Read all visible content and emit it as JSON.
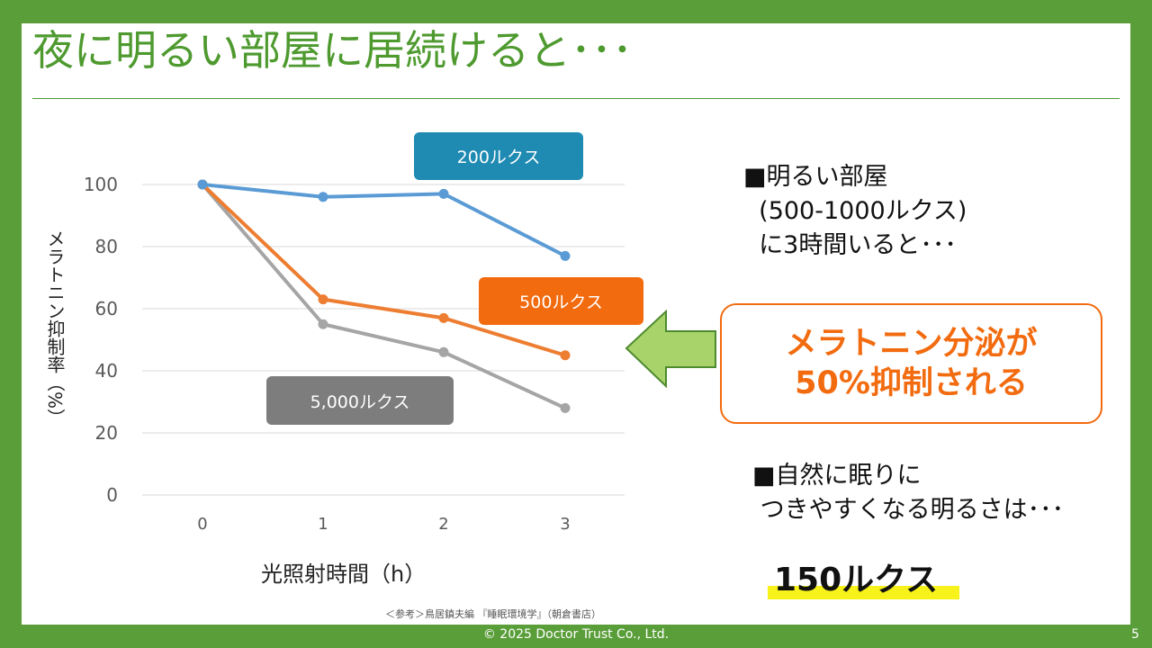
{
  "title": "夜に明るい部屋に居続けると･･･",
  "chart_data": {
    "type": "line",
    "x": [
      0,
      1,
      2,
      3
    ],
    "xlabel": "光照射時間（h）",
    "ylabel": "メラトニン抑制率（%）",
    "ylim": [
      0,
      100
    ],
    "yticks": [
      0,
      20,
      40,
      60,
      80,
      100
    ],
    "grid": true,
    "series": [
      {
        "name": "200ルクス",
        "color": "#5b9bd5",
        "label_color": "#1f8ab2",
        "values": [
          100,
          96,
          97,
          77
        ]
      },
      {
        "name": "500ルクス",
        "color": "#ed7d31",
        "label_color": "#f26b0f",
        "values": [
          100,
          63,
          57,
          45
        ]
      },
      {
        "name": "5,000ルクス",
        "color": "#a5a5a5",
        "label_color": "#7d7d7d",
        "values": [
          100,
          55,
          46,
          28
        ]
      }
    ]
  },
  "info1": {
    "line1": "■明るい部屋",
    "line2": "  (500-1000ルクス)",
    "line3": "  に3時間いると･･･"
  },
  "callout": {
    "line1": "メラトニン分泌が",
    "line2": "50%抑制される",
    "arrow_color": "#a8d36a"
  },
  "info2": {
    "line1": "■自然に眠りに",
    "line2": " つきやすくなる明るさは･･･"
  },
  "highlight_value": "150ルクス",
  "source": "＜参考＞鳥居鎮夫編 『睡眠環境学』（朝倉書店）",
  "footer": "© 2025 Doctor Trust Co., Ltd.",
  "page_number": "5"
}
